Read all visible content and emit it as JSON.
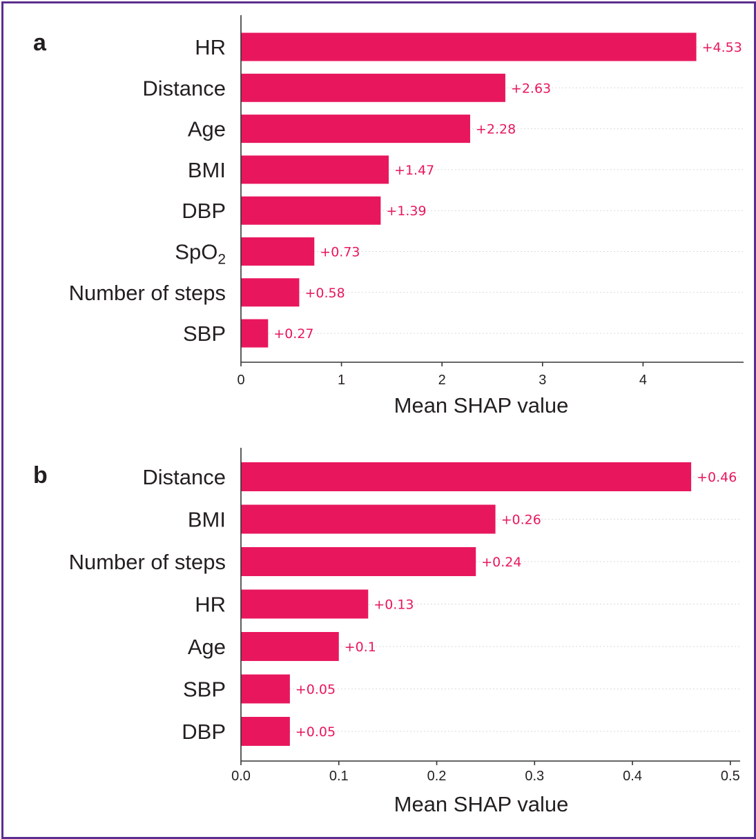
{
  "colors": {
    "bar": "#e8175d",
    "frame": "#5b2d8e",
    "text": "#231f20"
  },
  "chart_data": [
    {
      "panel": "a",
      "type": "bar",
      "orientation": "horizontal",
      "categories": [
        "HR",
        "Distance",
        "Age",
        "BMI",
        "DBP",
        "SpO₂",
        "Number of steps",
        "SBP"
      ],
      "values": [
        4.53,
        2.63,
        2.28,
        1.47,
        1.39,
        0.73,
        0.58,
        0.27
      ],
      "value_labels": [
        "+4.53",
        "+2.63",
        "+2.28",
        "+1.47",
        "+1.39",
        "+0.73",
        "+0.58",
        "+0.27"
      ],
      "xlabel": "Mean SHAP value",
      "xlim": [
        0,
        5
      ],
      "xticks": [
        0,
        1,
        2,
        3,
        4
      ],
      "xtick_labels": [
        "0",
        "1",
        "2",
        "3",
        "4"
      ]
    },
    {
      "panel": "b",
      "type": "bar",
      "orientation": "horizontal",
      "categories": [
        "Distance",
        "BMI",
        "Number of steps",
        "HR",
        "Age",
        "SBP",
        "DBP"
      ],
      "values": [
        0.46,
        0.26,
        0.24,
        0.13,
        0.1,
        0.05,
        0.05
      ],
      "value_labels": [
        "+0.46",
        "+0.26",
        "+0.24",
        "+0.13",
        "+0.1",
        "+0.05",
        "+0.05"
      ],
      "xlabel": "Mean SHAP value",
      "xlim": [
        0,
        0.51
      ],
      "xticks": [
        0,
        0.1,
        0.2,
        0.3,
        0.4,
        0.5
      ],
      "xtick_labels": [
        "0.0",
        "0.1",
        "0.2",
        "0.3",
        "0.4",
        "0.5"
      ]
    }
  ]
}
